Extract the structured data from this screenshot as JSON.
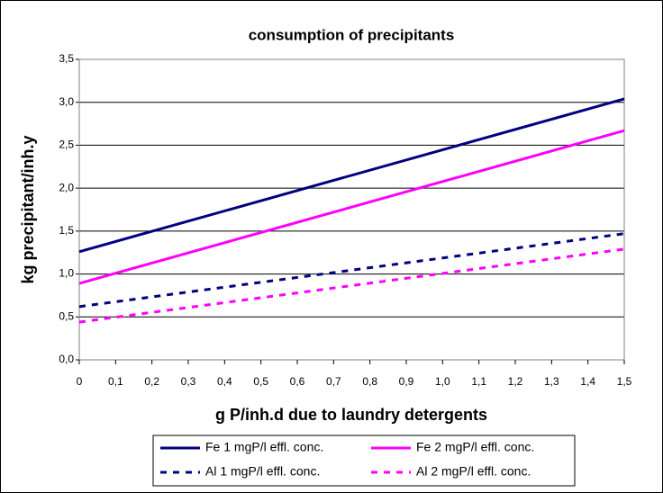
{
  "chart_data": {
    "type": "line",
    "title": "consumption of precipitants",
    "x_label": "g P/inh.d due to laundry detergents",
    "y_label": "kg precipitant/inh.y",
    "x": [
      0,
      1.5
    ],
    "series": [
      {
        "name": "Fe 1 mgP/l effl. conc.",
        "color": "#000080",
        "dash": false,
        "values": [
          1.26,
          3.04
        ]
      },
      {
        "name": "Fe 2 mgP/l effl. conc.",
        "color": "#ff00ff",
        "dash": false,
        "values": [
          0.89,
          2.67
        ]
      },
      {
        "name": "Al 1 mgP/l effl. conc.",
        "color": "#000080",
        "dash": true,
        "values": [
          0.62,
          1.47
        ]
      },
      {
        "name": "Al 2 mgP/l effl. conc.",
        "color": "#ff00ff",
        "dash": true,
        "values": [
          0.44,
          1.29
        ]
      }
    ],
    "xlim": [
      0,
      1.5
    ],
    "xticks": [
      0,
      {
        "value": 0.1,
        "label": "0,1"
      },
      {
        "value": 0.2,
        "label": "0,2"
      },
      {
        "value": 0.3,
        "label": "0,3"
      },
      {
        "value": 0.4,
        "label": "0,4"
      },
      {
        "value": 0.5,
        "label": "0,5"
      },
      {
        "value": 0.6,
        "label": "0,6"
      },
      {
        "value": 0.7,
        "label": "0,7"
      },
      {
        "value": 0.8,
        "label": "0,8"
      },
      {
        "value": 0.9,
        "label": "0,9"
      },
      {
        "value": 1.0,
        "label": "1,0"
      },
      {
        "value": 1.1,
        "label": "1,1"
      },
      {
        "value": 1.2,
        "label": "1,2"
      },
      {
        "value": 1.3,
        "label": "1,3"
      },
      {
        "value": 1.4,
        "label": "1,4"
      },
      {
        "value": 1.5,
        "label": "1,5"
      }
    ],
    "ylim": [
      0,
      3.5
    ],
    "yticks": [
      {
        "value": 0,
        "label": "0,0"
      },
      {
        "value": 0.5,
        "label": "0,5"
      },
      {
        "value": 1.0,
        "label": "1,0"
      },
      {
        "value": 1.5,
        "label": "1,5"
      },
      {
        "value": 2.0,
        "label": "2,0"
      },
      {
        "value": 2.5,
        "label": "2,5"
      },
      {
        "value": 3.0,
        "label": "3,0"
      },
      {
        "value": 3.5,
        "label": "3,5"
      }
    ],
    "grid": true,
    "legend": "bottom"
  }
}
